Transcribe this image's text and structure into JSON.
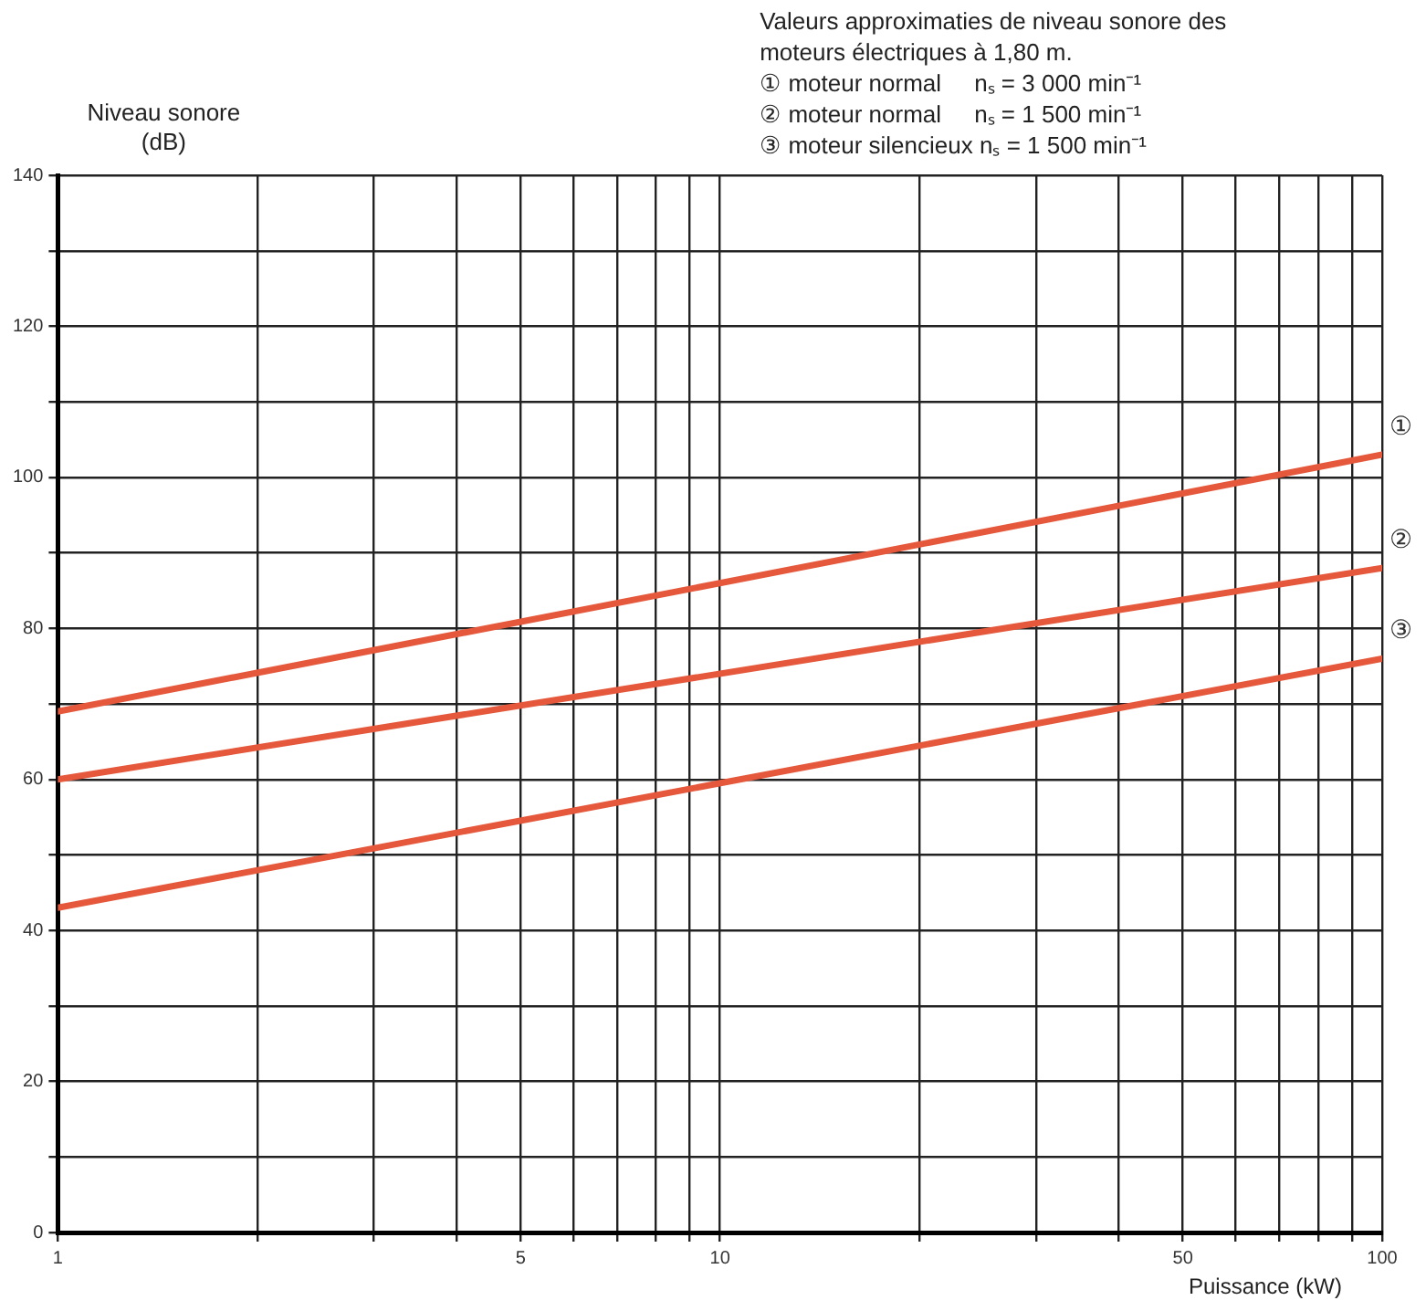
{
  "chart_data": {
    "type": "line",
    "title": "Valeurs approximaties de niveau sonore des moteurs électriques à 1,80 m.",
    "annotations": [
      "① moteur normal     nₛ = 3 000 min⁻¹",
      "② moteur normal     nₛ = 1 500 min⁻¹",
      "③ moteur silencieux nₛ = 1 500 min⁻¹"
    ],
    "xlabel": "Puissance (kW)",
    "ylabel": "Niveau sonore (dB)",
    "log": "x",
    "x": [
      1,
      100
    ],
    "series": [
      {
        "name": "①",
        "color": "#e5583c",
        "values": [
          69,
          103
        ]
      },
      {
        "name": "②",
        "color": "#e5583c",
        "values": [
          60,
          88
        ]
      },
      {
        "name": "③",
        "color": "#e5583c",
        "values": [
          43,
          76
        ]
      }
    ],
    "xlim": [
      1,
      100
    ],
    "ylim": [
      0,
      140
    ],
    "xticks": [
      1,
      {
        "value": 2,
        "label": null
      },
      {
        "value": 3,
        "label": null
      },
      {
        "value": 4,
        "label": null
      },
      5,
      {
        "value": 6,
        "label": null
      },
      {
        "value": 7,
        "label": null
      },
      {
        "value": 8,
        "label": null
      },
      {
        "value": 9,
        "label": null
      },
      10,
      {
        "value": 20,
        "label": null
      },
      {
        "value": 30,
        "label": null
      },
      {
        "value": 40,
        "label": null
      },
      50,
      {
        "value": 60,
        "label": null
      },
      {
        "value": 70,
        "label": null
      },
      {
        "value": 80,
        "label": null
      },
      {
        "value": 90,
        "label": null
      },
      100
    ],
    "yticks": [
      0,
      {
        "value": 10,
        "label": null
      },
      20,
      {
        "value": 30,
        "label": null
      },
      40,
      {
        "value": 50,
        "label": null
      },
      60,
      {
        "value": 70,
        "label": null
      },
      80,
      {
        "value": 90,
        "label": null
      },
      100,
      {
        "value": 110,
        "label": null
      },
      120,
      {
        "value": 130,
        "label": null
      },
      140
    ],
    "grid": true,
    "legend": false,
    "marker": "none",
    "line_style": "solid"
  }
}
